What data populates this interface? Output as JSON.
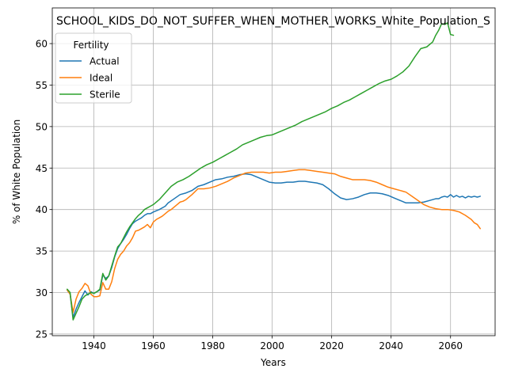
{
  "chart_data": {
    "type": "line",
    "title": "SCHOOL_KIDS_DO_NOT_SUFFER_WHEN_MOTHER_WORKS_White_Population_S",
    "xlabel": "Years",
    "ylabel": "% of White Population",
    "xlim": [
      1926,
      2075
    ],
    "ylim": [
      24.8,
      64.3
    ],
    "xticks": [
      1940,
      1960,
      1980,
      2000,
      2020,
      2040,
      2060
    ],
    "yticks": [
      25,
      30,
      35,
      40,
      45,
      50,
      55,
      60
    ],
    "grid": true,
    "legend": {
      "title": "Fertility",
      "placement": "upper-left"
    },
    "series": [
      {
        "name": "Actual",
        "color": "#1f77b4",
        "x": [
          1931,
          1932,
          1933,
          1934,
          1935,
          1936,
          1937,
          1938,
          1939,
          1940,
          1941,
          1942,
          1943,
          1944,
          1945,
          1946,
          1947,
          1948,
          1949,
          1950,
          1951,
          1952,
          1953,
          1954,
          1955,
          1956,
          1957,
          1958,
          1959,
          1960,
          1962,
          1964,
          1965,
          1967,
          1969,
          1971,
          1973,
          1975,
          1977,
          1979,
          1981,
          1983,
          1985,
          1987,
          1989,
          1991,
          1993,
          1995,
          1997,
          1999,
          2001,
          2003,
          2005,
          2007,
          2009,
          2011,
          2013,
          2015,
          2017,
          2019,
          2021,
          2023,
          2025,
          2027,
          2029,
          2031,
          2033,
          2035,
          2037,
          2039,
          2041,
          2043,
          2045,
          2047,
          2049,
          2051,
          2053,
          2055,
          2056,
          2057,
          2058,
          2059,
          2060,
          2061,
          2062,
          2063,
          2064,
          2065,
          2066,
          2067,
          2068,
          2069,
          2070
        ],
        "values": [
          30.3,
          29.8,
          27.0,
          28.0,
          28.8,
          29.5,
          30.2,
          29.7,
          30.1,
          29.9,
          30.1,
          30.3,
          32.1,
          31.7,
          32.0,
          33.0,
          34.3,
          35.3,
          35.9,
          36.4,
          37.0,
          37.7,
          38.3,
          38.6,
          38.8,
          39.0,
          39.3,
          39.5,
          39.5,
          39.7,
          40.0,
          40.4,
          40.8,
          41.3,
          41.8,
          42.0,
          42.3,
          42.8,
          43.0,
          43.3,
          43.6,
          43.7,
          43.9,
          44.0,
          44.2,
          44.3,
          44.2,
          43.9,
          43.6,
          43.3,
          43.2,
          43.2,
          43.3,
          43.3,
          43.4,
          43.4,
          43.3,
          43.2,
          43.0,
          42.5,
          41.9,
          41.4,
          41.2,
          41.3,
          41.5,
          41.8,
          42.0,
          42.0,
          41.9,
          41.7,
          41.4,
          41.1,
          40.8,
          40.8,
          40.8,
          40.9,
          41.1,
          41.3,
          41.3,
          41.5,
          41.6,
          41.5,
          41.8,
          41.5,
          41.7,
          41.5,
          41.6,
          41.4,
          41.6,
          41.5,
          41.6,
          41.5,
          41.6
        ]
      },
      {
        "name": "Ideal",
        "color": "#ff7f0e",
        "x": [
          1931,
          1932,
          1933,
          1934,
          1935,
          1936,
          1937,
          1938,
          1939,
          1940,
          1941,
          1942,
          1943,
          1944,
          1945,
          1946,
          1947,
          1948,
          1949,
          1950,
          1951,
          1952,
          1953,
          1954,
          1955,
          1956,
          1957,
          1958,
          1959,
          1960,
          1961,
          1962,
          1963,
          1964,
          1965,
          1966,
          1967,
          1968,
          1969,
          1970,
          1971,
          1972,
          1973,
          1975,
          1977,
          1979,
          1981,
          1983,
          1985,
          1987,
          1989,
          1991,
          1993,
          1995,
          1997,
          1999,
          2001,
          2003,
          2005,
          2007,
          2009,
          2011,
          2013,
          2015,
          2017,
          2019,
          2021,
          2023,
          2025,
          2027,
          2029,
          2031,
          2033,
          2035,
          2037,
          2039,
          2041,
          2043,
          2045,
          2047,
          2049,
          2051,
          2053,
          2055,
          2057,
          2059,
          2061,
          2063,
          2065,
          2067,
          2068,
          2069,
          2070
        ],
        "values": [
          30.3,
          29.8,
          27.6,
          29.2,
          30.1,
          30.5,
          31.1,
          30.8,
          29.8,
          29.5,
          29.5,
          29.6,
          31.2,
          30.4,
          30.4,
          31.3,
          32.9,
          34.0,
          34.6,
          35.0,
          35.6,
          36.0,
          36.6,
          37.4,
          37.5,
          37.7,
          37.9,
          38.2,
          37.8,
          38.5,
          38.8,
          39.0,
          39.2,
          39.5,
          39.8,
          40.0,
          40.3,
          40.6,
          40.9,
          41.0,
          41.2,
          41.5,
          41.8,
          42.5,
          42.5,
          42.6,
          42.8,
          43.1,
          43.4,
          43.8,
          44.1,
          44.4,
          44.5,
          44.5,
          44.5,
          44.4,
          44.5,
          44.5,
          44.6,
          44.7,
          44.8,
          44.8,
          44.7,
          44.6,
          44.5,
          44.4,
          44.3,
          44.0,
          43.8,
          43.6,
          43.6,
          43.6,
          43.5,
          43.3,
          43.0,
          42.7,
          42.5,
          42.3,
          42.1,
          41.6,
          41.1,
          40.6,
          40.3,
          40.1,
          40.0,
          40.0,
          39.9,
          39.7,
          39.3,
          38.8,
          38.4,
          38.2,
          37.7
        ]
      },
      {
        "name": "Sterile",
        "color": "#2ca02c",
        "x": [
          1931,
          1932,
          1933,
          1934,
          1935,
          1936,
          1937,
          1938,
          1939,
          1940,
          1941,
          1942,
          1943,
          1944,
          1945,
          1946,
          1947,
          1948,
          1949,
          1950,
          1951,
          1952,
          1953,
          1954,
          1955,
          1956,
          1957,
          1958,
          1959,
          1960,
          1962,
          1964,
          1966,
          1968,
          1970,
          1972,
          1974,
          1976,
          1978,
          1980,
          1982,
          1984,
          1986,
          1988,
          1990,
          1992,
          1994,
          1996,
          1998,
          2000,
          2002,
          2004,
          2006,
          2008,
          2010,
          2012,
          2014,
          2016,
          2018,
          2020,
          2022,
          2024,
          2026,
          2028,
          2030,
          2032,
          2034,
          2036,
          2038,
          2040,
          2042,
          2044,
          2046,
          2048,
          2050,
          2052,
          2054,
          2055,
          2056,
          2057,
          2058,
          2059,
          2060,
          2061
        ],
        "values": [
          30.4,
          30.0,
          26.7,
          27.5,
          28.3,
          29.2,
          29.6,
          29.8,
          30.0,
          29.9,
          30.1,
          30.4,
          32.3,
          31.5,
          32.0,
          33.2,
          34.4,
          35.5,
          35.9,
          36.6,
          37.3,
          37.9,
          38.4,
          38.9,
          39.3,
          39.6,
          40.0,
          40.2,
          40.4,
          40.6,
          41.2,
          42.0,
          42.8,
          43.3,
          43.6,
          44.0,
          44.5,
          45.0,
          45.4,
          45.7,
          46.1,
          46.5,
          46.9,
          47.3,
          47.8,
          48.1,
          48.4,
          48.7,
          48.9,
          49.0,
          49.3,
          49.6,
          49.9,
          50.2,
          50.6,
          50.9,
          51.2,
          51.5,
          51.8,
          52.2,
          52.5,
          52.9,
          53.2,
          53.6,
          54.0,
          54.4,
          54.8,
          55.2,
          55.5,
          55.7,
          56.1,
          56.6,
          57.3,
          58.4,
          59.4,
          59.6,
          60.2,
          61.0,
          61.6,
          62.4,
          62.3,
          62.5,
          61.1,
          61.0
        ]
      }
    ]
  }
}
